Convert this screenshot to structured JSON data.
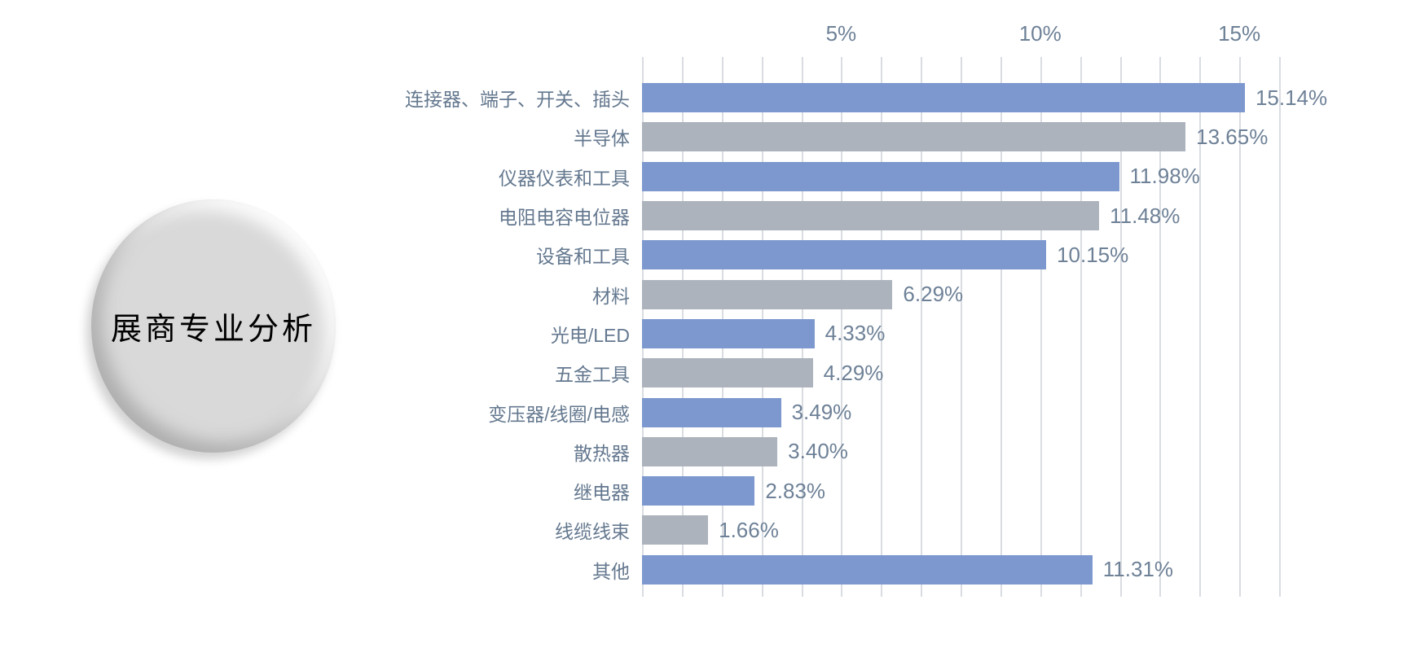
{
  "title": {
    "text": "展商专业分析"
  },
  "colors": {
    "page_bg": "#FFFFFF",
    "bar_blue": "#7C98CE",
    "bar_gray": "#ACB3BC",
    "gridline": "#D9DCE1",
    "axis_text": "#6E8197",
    "label_text": "#64788F",
    "circle_fill": "#D9D9D9",
    "title_text": "#000000"
  },
  "chart_data": {
    "type": "bar",
    "orientation": "horizontal",
    "title": "展商专业分析",
    "categories": [
      "连接器、端子、开关、插头",
      "半导体",
      "仪器仪表和工具",
      "电阻电容电位器",
      "设备和工具",
      "材料",
      "光电/LED",
      "五金工具",
      "变压器/线圈/电感",
      "散热器",
      "继电器",
      "线缆线束",
      "其他"
    ],
    "values": [
      15.14,
      13.65,
      11.98,
      11.48,
      10.15,
      6.29,
      4.33,
      4.29,
      3.49,
      3.4,
      2.83,
      1.66,
      11.31
    ],
    "value_labels": [
      "15.14%",
      "13.65%",
      "11.98%",
      "11.48%",
      "10.15%",
      "6.29%",
      "4.33%",
      "4.29%",
      "3.49%",
      "3.40%",
      "2.83%",
      "1.66%",
      "11.31%"
    ],
    "bar_colors": [
      "blue",
      "gray",
      "blue",
      "gray",
      "blue",
      "gray",
      "blue",
      "gray",
      "blue",
      "gray",
      "blue",
      "gray",
      "blue"
    ],
    "x_ticks": [
      {
        "value": 5,
        "label": "5%"
      },
      {
        "value": 10,
        "label": "10%"
      },
      {
        "value": 15,
        "label": "15%"
      }
    ],
    "xlim": [
      0,
      16
    ],
    "grid_step": 1,
    "grid": "on",
    "legend": "none",
    "xlabel": "",
    "ylabel": ""
  }
}
